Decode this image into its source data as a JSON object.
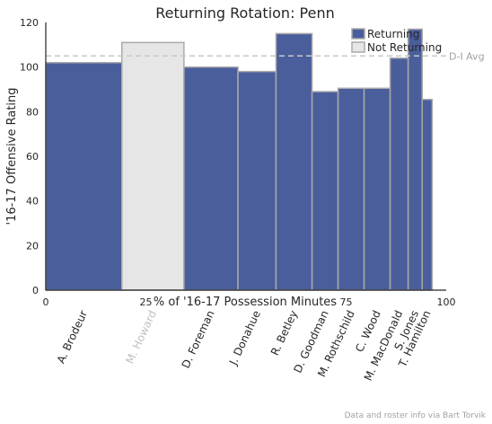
{
  "chart_data": {
    "type": "bar",
    "title": "Returning Rotation: Penn",
    "xlabel": "% of '16-17 Possession Minutes",
    "ylabel": "'16-17 Offensive Rating",
    "xlim": [
      0,
      100
    ],
    "ylim": [
      0,
      120
    ],
    "xticks": [
      {
        "value": 0,
        "label": "0"
      },
      {
        "value": 25,
        "label": "25"
      },
      {
        "value": 75,
        "label": "75"
      },
      {
        "value": 100,
        "label": "100"
      }
    ],
    "yticks": [
      0,
      20,
      40,
      60,
      80,
      100,
      120
    ],
    "grid": false,
    "legend": {
      "placement": "top-right",
      "entries": [
        {
          "label": "Returning",
          "color": "#4a5e9c"
        },
        {
          "label": "Not Returning",
          "color": "#e6e6e6"
        }
      ]
    },
    "reference_line": {
      "value": 105,
      "label": "D-I Avg"
    },
    "colors": {
      "returning": "#4a5e9c",
      "not_returning": "#e6e6e6",
      "edge": "#aaaaaa",
      "avg_line": "#c8c8c8"
    },
    "players": [
      {
        "name": "A. Brodeur",
        "start": 0,
        "width": 19,
        "rating": 102,
        "returning": true
      },
      {
        "name": "M. Howard",
        "start": 19,
        "width": 15.5,
        "rating": 111,
        "returning": false
      },
      {
        "name": "D. Foreman",
        "start": 34.5,
        "width": 13.5,
        "rating": 100,
        "returning": true
      },
      {
        "name": "J. Donahue",
        "start": 48,
        "width": 9.5,
        "rating": 98,
        "returning": true
      },
      {
        "name": "R. Betley",
        "start": 57.5,
        "width": 9,
        "rating": 115,
        "returning": true
      },
      {
        "name": "D. Goodman",
        "start": 66.5,
        "width": 6.5,
        "rating": 89,
        "returning": true
      },
      {
        "name": "M. Rothschild",
        "start": 73,
        "width": 6.5,
        "rating": 90.5,
        "returning": true
      },
      {
        "name": "C. Wood",
        "start": 79.5,
        "width": 6.5,
        "rating": 90.5,
        "returning": true
      },
      {
        "name": "M. MacDonald",
        "start": 86,
        "width": 4.5,
        "rating": 104,
        "returning": true
      },
      {
        "name": "S. Jones",
        "start": 90.5,
        "width": 3.5,
        "rating": 117,
        "returning": true
      },
      {
        "name": "T. Hamilton",
        "start": 94,
        "width": 2.5,
        "rating": 85.5,
        "returning": true
      }
    ]
  },
  "credit": "Data and roster info via Bart Torvik"
}
